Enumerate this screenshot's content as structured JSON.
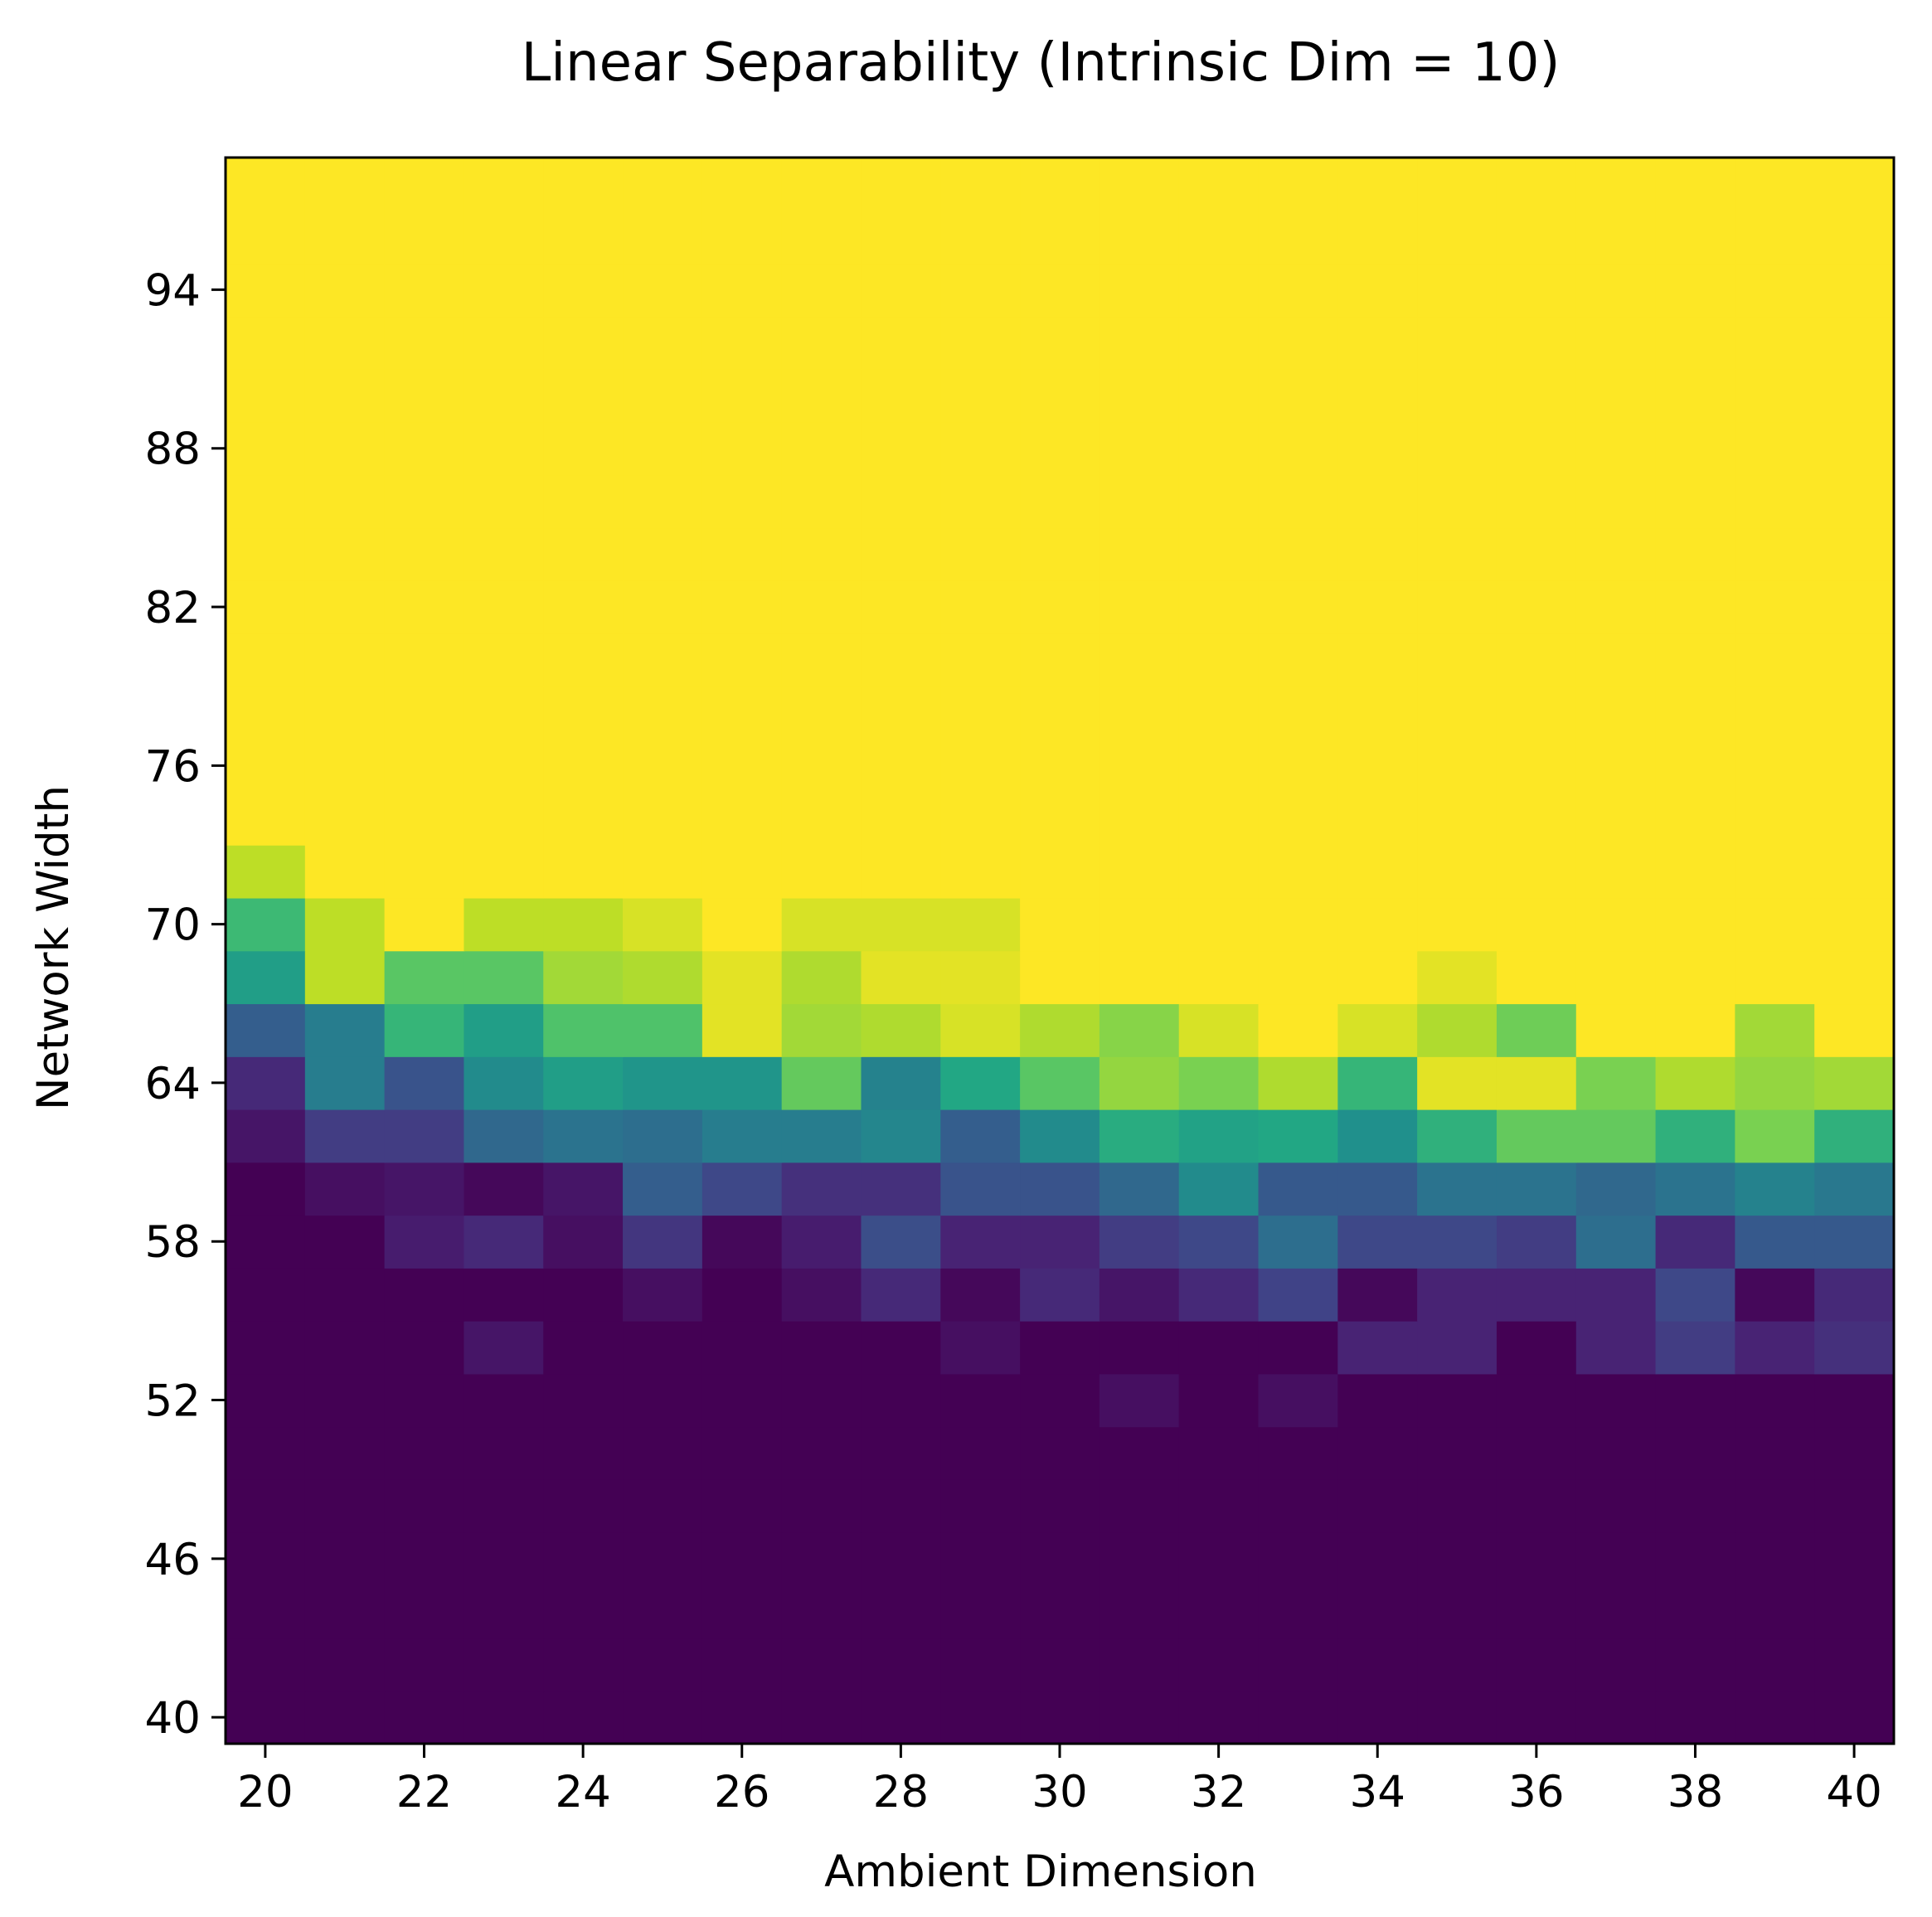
{
  "chart_data": {
    "type": "heatmap",
    "title": "Linear Separability (Intrinsic Dim = 10)",
    "xlabel": "Ambient Dimension",
    "ylabel": "Network Width",
    "x": [
      20,
      21,
      22,
      23,
      24,
      25,
      26,
      27,
      28,
      29,
      30,
      31,
      32,
      33,
      34,
      35,
      36,
      37,
      38,
      39,
      40
    ],
    "y": [
      40,
      42,
      44,
      46,
      48,
      50,
      52,
      54,
      56,
      58,
      60,
      62,
      64,
      66,
      68,
      70,
      72,
      74,
      76,
      78,
      80,
      82,
      84,
      86,
      88,
      90,
      92,
      94,
      96,
      98
    ],
    "xticks": [
      20,
      22,
      24,
      26,
      28,
      30,
      32,
      34,
      36,
      38,
      40
    ],
    "yticks": [
      40,
      46,
      52,
      58,
      64,
      70,
      76,
      82,
      88,
      94
    ],
    "xlim": [
      19.5,
      40.5
    ],
    "ylim": [
      39,
      99
    ],
    "colormap": "viridis",
    "vmin": 0,
    "vmax": 1,
    "grid": false,
    "legend": "none",
    "values_note_rows": "rows ordered from network width 40 (first) to 98 (last); columns ordered ambient dimension 20..40",
    "values": [
      [
        0,
        0,
        0,
        0,
        0,
        0,
        0,
        0,
        0,
        0,
        0,
        0,
        0,
        0,
        0,
        0,
        0,
        0,
        0,
        0,
        0
      ],
      [
        0,
        0,
        0,
        0,
        0,
        0,
        0,
        0,
        0,
        0,
        0,
        0,
        0,
        0,
        0,
        0,
        0,
        0,
        0,
        0,
        0
      ],
      [
        0,
        0,
        0,
        0,
        0,
        0,
        0,
        0,
        0,
        0,
        0,
        0,
        0,
        0,
        0,
        0,
        0,
        0,
        0,
        0,
        0
      ],
      [
        0,
        0,
        0,
        0,
        0,
        0,
        0,
        0,
        0,
        0,
        0,
        0,
        0,
        0,
        0,
        0,
        0,
        0,
        0,
        0,
        0
      ],
      [
        0,
        0,
        0,
        0,
        0,
        0,
        0,
        0,
        0,
        0,
        0,
        0,
        0,
        0,
        0,
        0,
        0,
        0,
        0,
        0,
        0
      ],
      [
        0,
        0,
        0,
        0,
        0,
        0,
        0,
        0,
        0,
        0,
        0,
        0,
        0,
        0,
        0,
        0,
        0,
        0,
        0,
        0,
        0
      ],
      [
        0,
        0,
        0,
        0,
        0,
        0,
        0,
        0,
        0,
        0,
        0,
        0.04,
        0,
        0.04,
        0,
        0,
        0,
        0,
        0,
        0,
        0
      ],
      [
        0,
        0,
        0,
        0.06,
        0,
        0,
        0,
        0,
        0,
        0.04,
        0,
        0,
        0,
        0,
        0.1,
        0.1,
        0,
        0.1,
        0.18,
        0.1,
        0.14
      ],
      [
        0,
        0,
        0,
        0,
        0,
        0.04,
        0,
        0.04,
        0.12,
        0.02,
        0.12,
        0.06,
        0.12,
        0.2,
        0.02,
        0.1,
        0.1,
        0.1,
        0.22,
        0.02,
        0.12
      ],
      [
        0,
        0,
        0.08,
        0.12,
        0.04,
        0.16,
        0.02,
        0.08,
        0.24,
        0.1,
        0.1,
        0.18,
        0.22,
        0.36,
        0.22,
        0.22,
        0.18,
        0.36,
        0.12,
        0.28,
        0.28
      ],
      [
        0,
        0.04,
        0.06,
        0.02,
        0.06,
        0.3,
        0.22,
        0.14,
        0.14,
        0.26,
        0.26,
        0.34,
        0.48,
        0.28,
        0.28,
        0.38,
        0.38,
        0.34,
        0.38,
        0.44,
        0.4
      ],
      [
        0.06,
        0.18,
        0.18,
        0.34,
        0.38,
        0.36,
        0.42,
        0.42,
        0.46,
        0.3,
        0.48,
        0.62,
        0.58,
        0.6,
        0.5,
        0.64,
        0.76,
        0.76,
        0.64,
        0.8,
        0.64
      ],
      [
        0.12,
        0.42,
        0.26,
        0.48,
        0.56,
        0.52,
        0.52,
        0.76,
        0.44,
        0.6,
        0.74,
        0.84,
        0.8,
        0.88,
        0.66,
        0.96,
        0.96,
        0.8,
        0.88,
        0.84,
        0.86
      ],
      [
        0.3,
        0.42,
        0.66,
        0.56,
        0.72,
        0.72,
        0.96,
        0.86,
        0.88,
        0.94,
        0.88,
        0.82,
        0.94,
        1,
        0.94,
        0.88,
        0.78,
        1,
        1,
        0.86,
        1
      ],
      [
        0.56,
        0.9,
        0.74,
        0.74,
        0.86,
        0.88,
        0.96,
        0.88,
        0.96,
        0.96,
        1,
        1,
        1,
        1,
        1,
        0.96,
        1,
        1,
        1,
        1,
        1
      ],
      [
        0.68,
        0.9,
        1,
        0.9,
        0.9,
        0.94,
        1,
        0.94,
        0.94,
        0.94,
        1,
        1,
        1,
        1,
        1,
        1,
        1,
        1,
        1,
        1,
        1
      ],
      [
        0.9,
        1,
        1,
        1,
        1,
        1,
        1,
        1,
        1,
        1,
        1,
        1,
        1,
        1,
        1,
        1,
        1,
        1,
        1,
        1,
        1
      ],
      [
        1,
        1,
        1,
        1,
        1,
        1,
        1,
        1,
        1,
        1,
        1,
        1,
        1,
        1,
        1,
        1,
        1,
        1,
        1,
        1,
        1
      ],
      [
        1,
        1,
        1,
        1,
        1,
        1,
        1,
        1,
        1,
        1,
        1,
        1,
        1,
        1,
        1,
        1,
        1,
        1,
        1,
        1,
        1
      ],
      [
        1,
        1,
        1,
        1,
        1,
        1,
        1,
        1,
        1,
        1,
        1,
        1,
        1,
        1,
        1,
        1,
        1,
        1,
        1,
        1,
        1
      ],
      [
        1,
        1,
        1,
        1,
        1,
        1,
        1,
        1,
        1,
        1,
        1,
        1,
        1,
        1,
        1,
        1,
        1,
        1,
        1,
        1,
        1
      ],
      [
        1,
        1,
        1,
        1,
        1,
        1,
        1,
        1,
        1,
        1,
        1,
        1,
        1,
        1,
        1,
        1,
        1,
        1,
        1,
        1,
        1
      ],
      [
        1,
        1,
        1,
        1,
        1,
        1,
        1,
        1,
        1,
        1,
        1,
        1,
        1,
        1,
        1,
        1,
        1,
        1,
        1,
        1,
        1
      ],
      [
        1,
        1,
        1,
        1,
        1,
        1,
        1,
        1,
        1,
        1,
        1,
        1,
        1,
        1,
        1,
        1,
        1,
        1,
        1,
        1,
        1
      ],
      [
        1,
        1,
        1,
        1,
        1,
        1,
        1,
        1,
        1,
        1,
        1,
        1,
        1,
        1,
        1,
        1,
        1,
        1,
        1,
        1,
        1
      ],
      [
        1,
        1,
        1,
        1,
        1,
        1,
        1,
        1,
        1,
        1,
        1,
        1,
        1,
        1,
        1,
        1,
        1,
        1,
        1,
        1,
        1
      ],
      [
        1,
        1,
        1,
        1,
        1,
        1,
        1,
        1,
        1,
        1,
        1,
        1,
        1,
        1,
        1,
        1,
        1,
        1,
        1,
        1,
        1
      ],
      [
        1,
        1,
        1,
        1,
        1,
        1,
        1,
        1,
        1,
        1,
        1,
        1,
        1,
        1,
        1,
        1,
        1,
        1,
        1,
        1,
        1
      ],
      [
        1,
        1,
        1,
        1,
        1,
        1,
        1,
        1,
        1,
        1,
        1,
        1,
        1,
        1,
        1,
        1,
        1,
        1,
        1,
        1,
        1
      ],
      [
        1,
        1,
        1,
        1,
        1,
        1,
        1,
        1,
        1,
        1,
        1,
        1,
        1,
        1,
        1,
        1,
        1,
        1,
        1,
        1,
        1
      ]
    ]
  }
}
